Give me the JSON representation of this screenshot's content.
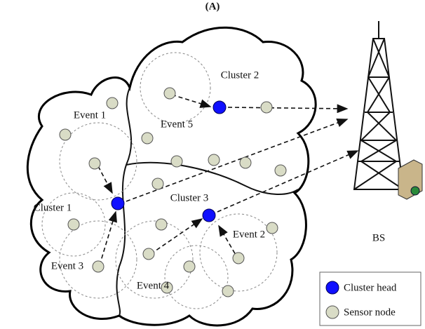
{
  "title": "(A)",
  "labels": [
    "Cluster 2",
    "Event 1",
    "Event 5",
    "Cluster 1",
    "Cluster 3",
    "Event 2",
    "Event 3",
    "Event 4"
  ],
  "base_station": {
    "label": "BS"
  },
  "legend": {
    "items": [
      "Cluster head",
      "Sensor node"
    ]
  }
}
